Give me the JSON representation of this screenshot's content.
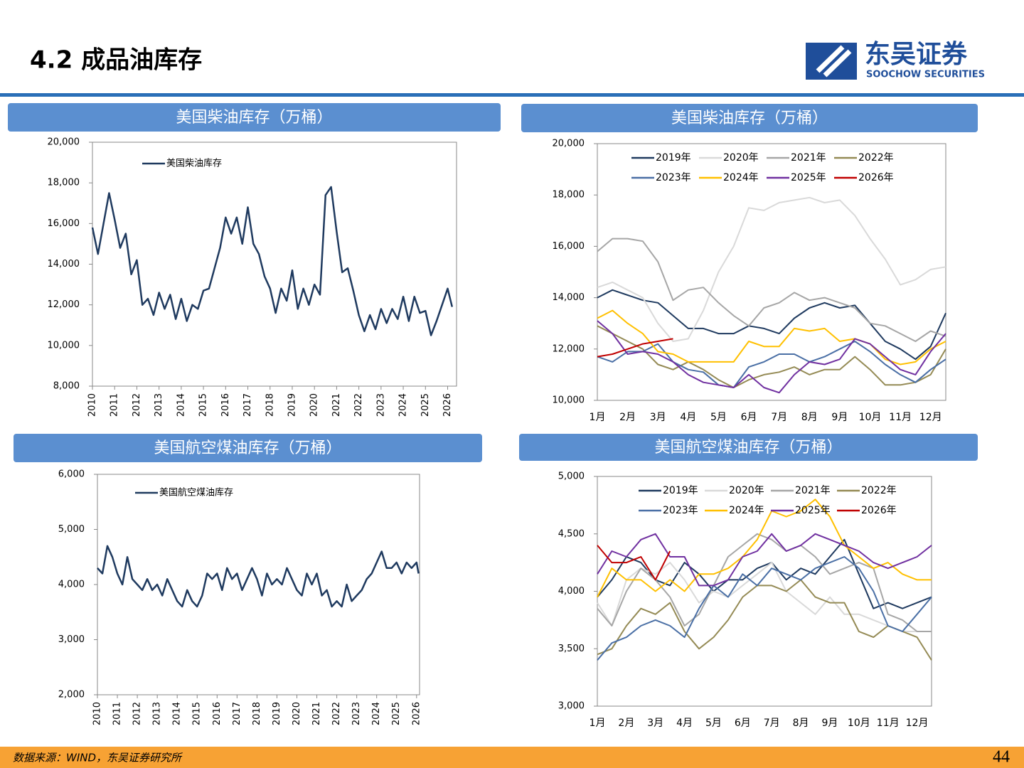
{
  "header": {
    "title": "4.2 成品油库存",
    "logo_cn": "东吴证券",
    "logo_en": "SOOCHOW SECURITIES"
  },
  "footer": {
    "source": "数据来源：WIND，东吴证券研究所",
    "page": "44"
  },
  "chart_data": [
    {
      "type": "line",
      "title": "美国柴油库存（万桶）",
      "x": [
        2010,
        2010.25,
        2010.5,
        2010.75,
        2011,
        2011.25,
        2011.5,
        2011.75,
        2012,
        2012.25,
        2012.5,
        2012.75,
        2013,
        2013.25,
        2013.5,
        2013.75,
        2014,
        2014.25,
        2014.5,
        2014.75,
        2015,
        2015.25,
        2015.5,
        2015.75,
        2016,
        2016.25,
        2016.5,
        2016.75,
        2017,
        2017.25,
        2017.5,
        2017.75,
        2018,
        2018.25,
        2018.5,
        2018.75,
        2019,
        2019.25,
        2019.5,
        2019.75,
        2020,
        2020.25,
        2020.5,
        2020.75,
        2021,
        2021.25,
        2021.5,
        2021.75,
        2022,
        2022.25,
        2022.5,
        2022.75,
        2023,
        2023.25,
        2023.5,
        2023.75,
        2024,
        2024.25,
        2024.5,
        2024.75,
        2025,
        2025.25,
        2025.5,
        2025.75,
        2026,
        2026.2
      ],
      "series": [
        {
          "name": "美国柴油库存",
          "color": "#1f3a5f",
          "values": [
            15800,
            14500,
            16000,
            17500,
            16200,
            14800,
            15500,
            13500,
            14200,
            12000,
            12300,
            11500,
            12600,
            11800,
            12500,
            11300,
            12300,
            11200,
            12000,
            11800,
            12700,
            12800,
            13800,
            14800,
            16300,
            15500,
            16300,
            15000,
            16800,
            15000,
            14500,
            13400,
            12800,
            11600,
            12800,
            12200,
            13700,
            11800,
            12800,
            12000,
            13000,
            12500,
            17400,
            17800,
            15600,
            13600,
            13800,
            12700,
            11500,
            10700,
            11500,
            10800,
            11800,
            11100,
            11800,
            11300,
            12400,
            11200,
            12400,
            11600,
            11700,
            10500,
            11200,
            12000,
            12800,
            11900
          ]
        }
      ],
      "xlim": [
        2010,
        2026.4
      ],
      "xticks": [
        2010,
        2011,
        2012,
        2013,
        2014,
        2015,
        2016,
        2017,
        2018,
        2019,
        2020,
        2021,
        2022,
        2023,
        2024,
        2025,
        2026
      ],
      "ylim": [
        8000,
        20000
      ],
      "yticks": [
        {
          "value": 8000,
          "label": "8,000"
        },
        {
          "value": 10000,
          "label": "10,000"
        },
        {
          "value": 12000,
          "label": "12,000"
        },
        {
          "value": 14000,
          "label": "14,000"
        },
        {
          "value": 16000,
          "label": "16,000"
        },
        {
          "value": 18000,
          "label": "18,000"
        },
        {
          "value": 20000,
          "label": "20,000"
        }
      ],
      "grid": false
    },
    {
      "type": "line",
      "title": "美国柴油库存（万桶）",
      "categories": [
        "1月",
        null,
        "2月",
        null,
        "3月",
        null,
        "4月",
        null,
        "5月",
        null,
        "6月",
        null,
        "7月",
        null,
        "8月",
        null,
        "9月",
        null,
        "10月",
        null,
        "11月",
        null,
        "12月",
        null
      ],
      "series": [
        {
          "name": "2019年",
          "color": "#1f3a5f",
          "values": [
            14000,
            14300,
            14100,
            13900,
            13800,
            13300,
            12800,
            12800,
            12600,
            12600,
            12900,
            12800,
            12600,
            13200,
            13600,
            13800,
            13600,
            13700,
            13000,
            12300,
            12000,
            11600,
            12100,
            13400
          ]
        },
        {
          "name": "2020年",
          "color": "#d9d9d9",
          "values": [
            14400,
            14600,
            14300,
            14000,
            13000,
            12300,
            12400,
            13500,
            15000,
            16000,
            17500,
            17400,
            17700,
            17800,
            17900,
            17700,
            17800,
            17200,
            16300,
            15500,
            14500,
            14700,
            15100,
            15200
          ]
        },
        {
          "name": "2021年",
          "color": "#a6a6a6",
          "values": [
            15800,
            16300,
            16300,
            16200,
            15400,
            13900,
            14300,
            14400,
            13800,
            13300,
            12900,
            13600,
            13800,
            14200,
            13900,
            14000,
            13800,
            13600,
            13000,
            12900,
            12600,
            12300,
            12700,
            12500
          ]
        },
        {
          "name": "2022年",
          "color": "#948a54",
          "values": [
            12900,
            12600,
            12300,
            12000,
            11400,
            11200,
            11500,
            11200,
            10800,
            10500,
            10800,
            11000,
            11100,
            11300,
            11000,
            11200,
            11200,
            11700,
            11200,
            10600,
            10600,
            10700,
            11000,
            12000
          ]
        },
        {
          "name": "2023年",
          "color": "#4a6fa5",
          "values": [
            11700,
            11500,
            11900,
            11900,
            12200,
            11500,
            11200,
            11100,
            10600,
            10500,
            11300,
            11500,
            11800,
            11800,
            11500,
            11700,
            12000,
            12300,
            11900,
            11400,
            11000,
            10700,
            11200,
            11600
          ]
        },
        {
          "name": "2024年",
          "color": "#ffc000",
          "values": [
            13200,
            13500,
            13000,
            12600,
            11900,
            11800,
            11500,
            11500,
            11500,
            11500,
            12300,
            12100,
            12100,
            12800,
            12700,
            12800,
            12300,
            12400,
            12200,
            11600,
            11400,
            11500,
            12000,
            12300
          ]
        },
        {
          "name": "2025年",
          "color": "#7030a0",
          "values": [
            13100,
            12600,
            11800,
            11900,
            11800,
            11500,
            11000,
            10700,
            10600,
            10500,
            11000,
            10500,
            10300,
            11000,
            11500,
            11400,
            11600,
            12400,
            12200,
            11700,
            11200,
            11000,
            11900,
            12600
          ]
        },
        {
          "name": "2026年",
          "color": "#c00000",
          "values": [
            11700,
            11800,
            12000,
            12200,
            12300,
            12400,
            null,
            null,
            null,
            null,
            null,
            null,
            null,
            null,
            null,
            null,
            null,
            null,
            null,
            null,
            null,
            null,
            null,
            null
          ]
        }
      ],
      "ylim": [
        10000,
        20000
      ],
      "yticks": [
        {
          "value": 10000,
          "label": "10,000"
        },
        {
          "value": 12000,
          "label": "12,000"
        },
        {
          "value": 14000,
          "label": "14,000"
        },
        {
          "value": 16000,
          "label": "16,000"
        },
        {
          "value": 18000,
          "label": "18,000"
        },
        {
          "value": 20000,
          "label": "20,000"
        }
      ],
      "grid": false
    },
    {
      "type": "line",
      "title": "美国航空煤油库存（万桶）",
      "x": [
        2010,
        2010.25,
        2010.5,
        2010.75,
        2011,
        2011.25,
        2011.5,
        2011.75,
        2012,
        2012.25,
        2012.5,
        2012.75,
        2013,
        2013.25,
        2013.5,
        2013.75,
        2014,
        2014.25,
        2014.5,
        2014.75,
        2015,
        2015.25,
        2015.5,
        2015.75,
        2016,
        2016.25,
        2016.5,
        2016.75,
        2017,
        2017.25,
        2017.5,
        2017.75,
        2018,
        2018.25,
        2018.5,
        2018.75,
        2019,
        2019.25,
        2019.5,
        2019.75,
        2020,
        2020.25,
        2020.5,
        2020.75,
        2021,
        2021.25,
        2021.5,
        2021.75,
        2022,
        2022.25,
        2022.5,
        2022.75,
        2023,
        2023.25,
        2023.5,
        2023.75,
        2024,
        2024.25,
        2024.5,
        2024.75,
        2025,
        2025.25,
        2025.5,
        2025.75,
        2026,
        2026.1
      ],
      "series": [
        {
          "name": "美国航空煤油库存",
          "color": "#1f3a5f",
          "values": [
            4300,
            4200,
            4700,
            4500,
            4200,
            4000,
            4500,
            4100,
            4000,
            3900,
            4100,
            3900,
            4000,
            3800,
            4100,
            3900,
            3700,
            3600,
            3900,
            3700,
            3600,
            3800,
            4200,
            4100,
            4200,
            3900,
            4300,
            4100,
            4200,
            3900,
            4100,
            4300,
            4100,
            3800,
            4200,
            4000,
            4100,
            4000,
            4300,
            4100,
            3900,
            3800,
            4200,
            4000,
            4200,
            3800,
            3900,
            3600,
            3700,
            3600,
            4000,
            3700,
            3800,
            3900,
            4100,
            4200,
            4400,
            4600,
            4300,
            4300,
            4400,
            4200,
            4400,
            4300,
            4400,
            4200
          ]
        }
      ],
      "xlim": [
        2010,
        2026.15
      ],
      "xticks": [
        2010,
        2011,
        2012,
        2013,
        2014,
        2015,
        2016,
        2017,
        2018,
        2019,
        2020,
        2021,
        2022,
        2023,
        2024,
        2025,
        2026
      ],
      "ylim": [
        2000,
        6000
      ],
      "yticks": [
        {
          "value": 2000,
          "label": "2,000"
        },
        {
          "value": 3000,
          "label": "3,000"
        },
        {
          "value": 4000,
          "label": "4,000"
        },
        {
          "value": 5000,
          "label": "5,000"
        },
        {
          "value": 6000,
          "label": "6,000"
        }
      ],
      "grid": false
    },
    {
      "type": "line",
      "title": "美国航空煤油库存（万桶）",
      "categories": [
        "1月",
        null,
        "2月",
        null,
        "3月",
        null,
        "4月",
        null,
        "5月",
        null,
        "6月",
        null,
        "7月",
        null,
        "8月",
        null,
        "9月",
        null,
        "10月",
        null,
        "11月",
        null,
        "12月",
        null
      ],
      "series": [
        {
          "name": "2019年",
          "color": "#1f3a5f",
          "values": [
            3950,
            4100,
            4300,
            4250,
            4100,
            4050,
            4250,
            4150,
            4000,
            4100,
            4100,
            4200,
            4250,
            4100,
            4200,
            4150,
            4300,
            4450,
            4150,
            3850,
            3900,
            3850,
            3900,
            3950
          ]
        },
        {
          "name": "2020年",
          "color": "#d9d9d9",
          "values": [
            3900,
            3700,
            4100,
            4200,
            4150,
            4250,
            4100,
            3900,
            4000,
            3950,
            4050,
            4150,
            4250,
            4000,
            3900,
            3800,
            3950,
            3800,
            3800,
            3750,
            3700,
            3650,
            3650,
            3650
          ]
        },
        {
          "name": "2021年",
          "color": "#a6a6a6",
          "values": [
            3850,
            3700,
            4000,
            4200,
            4100,
            3950,
            3700,
            3800,
            4050,
            4300,
            4400,
            4500,
            4450,
            4350,
            4400,
            4300,
            4150,
            4200,
            4250,
            4200,
            3800,
            3750,
            3650,
            3650
          ]
        },
        {
          "name": "2022年",
          "color": "#948a54",
          "values": [
            3450,
            3500,
            3700,
            3850,
            3800,
            3900,
            3650,
            3500,
            3600,
            3750,
            3950,
            4050,
            4050,
            4000,
            4100,
            3950,
            3900,
            3900,
            3650,
            3600,
            3700,
            3650,
            3600,
            3400
          ]
        },
        {
          "name": "2023年",
          "color": "#4a6fa5",
          "values": [
            3400,
            3550,
            3600,
            3700,
            3750,
            3700,
            3600,
            3850,
            4050,
            3950,
            4150,
            4050,
            4200,
            4150,
            4100,
            4200,
            4250,
            4300,
            4200,
            4000,
            3700,
            3650,
            3800,
            3950
          ]
        },
        {
          "name": "2024年",
          "color": "#ffc000",
          "values": [
            3950,
            4200,
            4100,
            4100,
            4000,
            4100,
            4000,
            4150,
            4150,
            4200,
            4300,
            4450,
            4700,
            4650,
            4700,
            4800,
            4650,
            4400,
            4300,
            4200,
            4250,
            4150,
            4100,
            4100
          ]
        },
        {
          "name": "2025年",
          "color": "#7030a0",
          "values": [
            4150,
            4350,
            4300,
            4450,
            4500,
            4300,
            4300,
            4050,
            4050,
            4100,
            4300,
            4350,
            4500,
            4350,
            4400,
            4500,
            4450,
            4400,
            4350,
            4250,
            4200,
            4250,
            4300,
            4400
          ]
        },
        {
          "name": "2026年",
          "color": "#c00000",
          "values": [
            4400,
            4250,
            4250,
            4300,
            4100,
            4350,
            null,
            null,
            null,
            null,
            null,
            null,
            null,
            null,
            null,
            null,
            null,
            null,
            null,
            null,
            null,
            null,
            null,
            null
          ]
        }
      ],
      "ylim": [
        3000,
        5000
      ],
      "yticks": [
        {
          "value": 3000,
          "label": "3,000"
        },
        {
          "value": 3500,
          "label": "3,500"
        },
        {
          "value": 4000,
          "label": "4,000"
        },
        {
          "value": 4500,
          "label": "4,500"
        },
        {
          "value": 5000,
          "label": "5,000"
        }
      ],
      "grid": false
    }
  ]
}
